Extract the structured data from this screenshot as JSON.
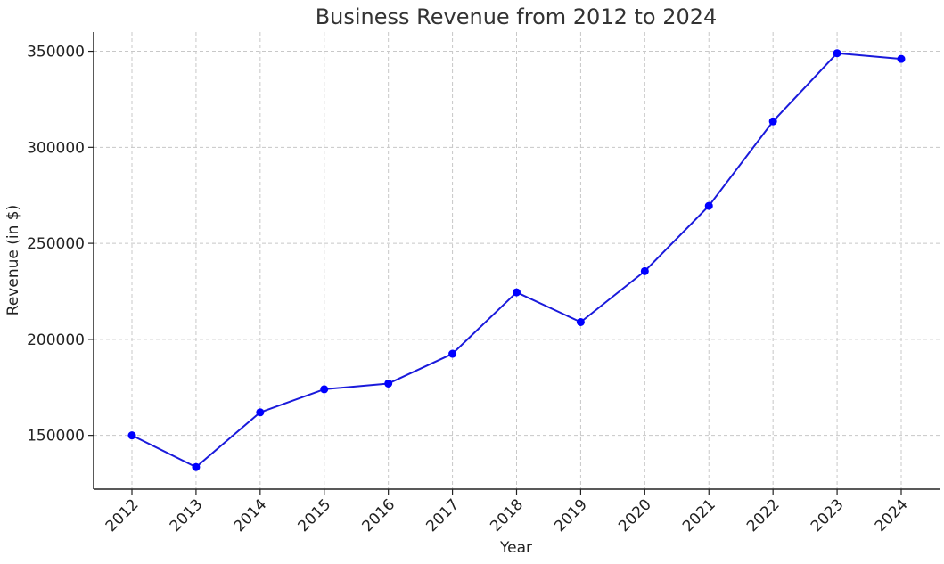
{
  "chart_data": {
    "type": "line",
    "title": "Business Revenue from 2012 to 2024",
    "xlabel": "Year",
    "ylabel": "Revenue (in $)",
    "categories": [
      "2012",
      "2013",
      "2014",
      "2015",
      "2016",
      "2017",
      "2018",
      "2019",
      "2020",
      "2021",
      "2022",
      "2023",
      "2024"
    ],
    "series": [
      {
        "values": [
          150000,
          133500,
          162000,
          174000,
          177000,
          192500,
          224500,
          209000,
          235500,
          269500,
          313500,
          349000,
          346000
        ],
        "color": "#0000ff",
        "line_color": "#1a1adb",
        "marker": "circle"
      }
    ],
    "ylim": [
      122000,
      360000
    ],
    "yticks": [
      150000,
      200000,
      250000,
      300000,
      350000
    ],
    "grid": true,
    "legend": "none",
    "x_tick_rotation": "45deg"
  }
}
